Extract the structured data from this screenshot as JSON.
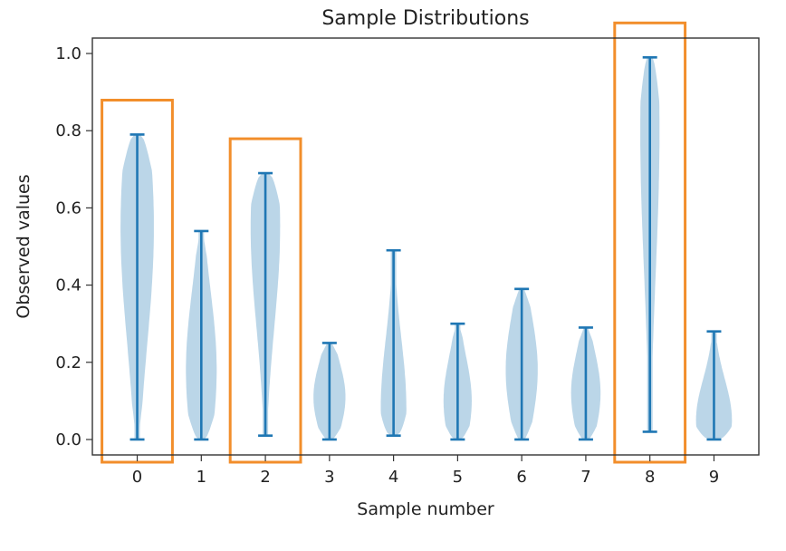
{
  "chart_data": {
    "type": "violin",
    "title": "Sample Distributions",
    "xlabel": "Sample number",
    "ylabel": "Observed values",
    "ylim": [
      -0.04,
      1.04
    ],
    "yticks": [
      0.0,
      0.2,
      0.4,
      0.6,
      0.8,
      1.0
    ],
    "ytick_labels": [
      "0.0",
      "0.2",
      "0.4",
      "0.6",
      "0.8",
      "1.0"
    ],
    "grid": false,
    "series_color": "#1f77b4",
    "highlight_color": "#f28e2b",
    "highlighted_samples": [
      0,
      2,
      8
    ],
    "samples": [
      {
        "label": "0",
        "min": 0.0,
        "max": 0.79,
        "mode": 0.55,
        "width": 0.26
      },
      {
        "label": "1",
        "min": 0.0,
        "max": 0.54,
        "mode": 0.18,
        "width": 0.24
      },
      {
        "label": "2",
        "min": 0.01,
        "max": 0.69,
        "mode": 0.55,
        "width": 0.23
      },
      {
        "label": "3",
        "min": 0.0,
        "max": 0.25,
        "mode": 0.11,
        "width": 0.25
      },
      {
        "label": "4",
        "min": 0.01,
        "max": 0.49,
        "mode": 0.08,
        "width": 0.2
      },
      {
        "label": "5",
        "min": 0.0,
        "max": 0.3,
        "mode": 0.1,
        "width": 0.22
      },
      {
        "label": "6",
        "min": 0.0,
        "max": 0.39,
        "mode": 0.18,
        "width": 0.25
      },
      {
        "label": "7",
        "min": 0.0,
        "max": 0.29,
        "mode": 0.12,
        "width": 0.23
      },
      {
        "label": "8",
        "min": 0.02,
        "max": 0.99,
        "mode": 0.8,
        "width": 0.15
      },
      {
        "label": "9",
        "min": 0.0,
        "max": 0.28,
        "mode": 0.05,
        "width": 0.28
      }
    ]
  }
}
